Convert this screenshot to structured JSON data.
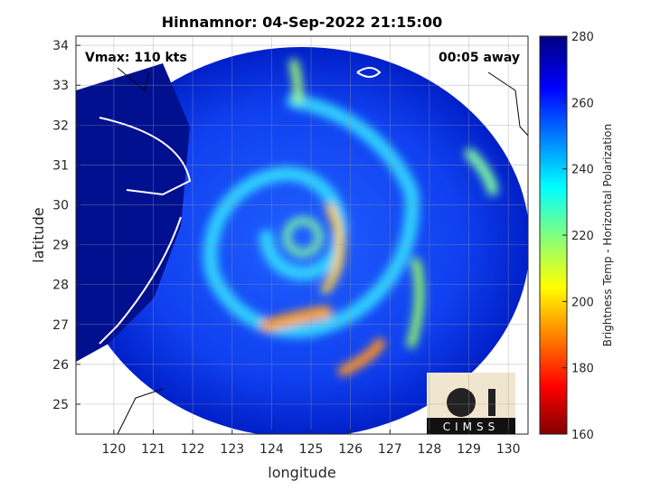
{
  "title": "Hinnamnor: 04-Sep-2022 21:15:00",
  "annotations": {
    "left": "Vmax: 110 kts",
    "right": "00:05 away"
  },
  "x_axis": {
    "label": "longitude",
    "lim": [
      119.04,
      130.5
    ],
    "ticks": [
      120,
      121,
      122,
      123,
      124,
      125,
      126,
      127,
      128,
      129,
      130
    ]
  },
  "y_axis": {
    "label": "latitude",
    "lim": [
      24.25,
      34.23
    ],
    "ticks": [
      25,
      26,
      27,
      28,
      29,
      30,
      31,
      32,
      33,
      34
    ]
  },
  "colorbar": {
    "label": "Brightness Temp - Horizontal Polarization",
    "lim": [
      160,
      280
    ],
    "ticks": [
      160,
      180,
      200,
      220,
      240,
      260,
      280
    ]
  },
  "logo": "CIMSS"
}
